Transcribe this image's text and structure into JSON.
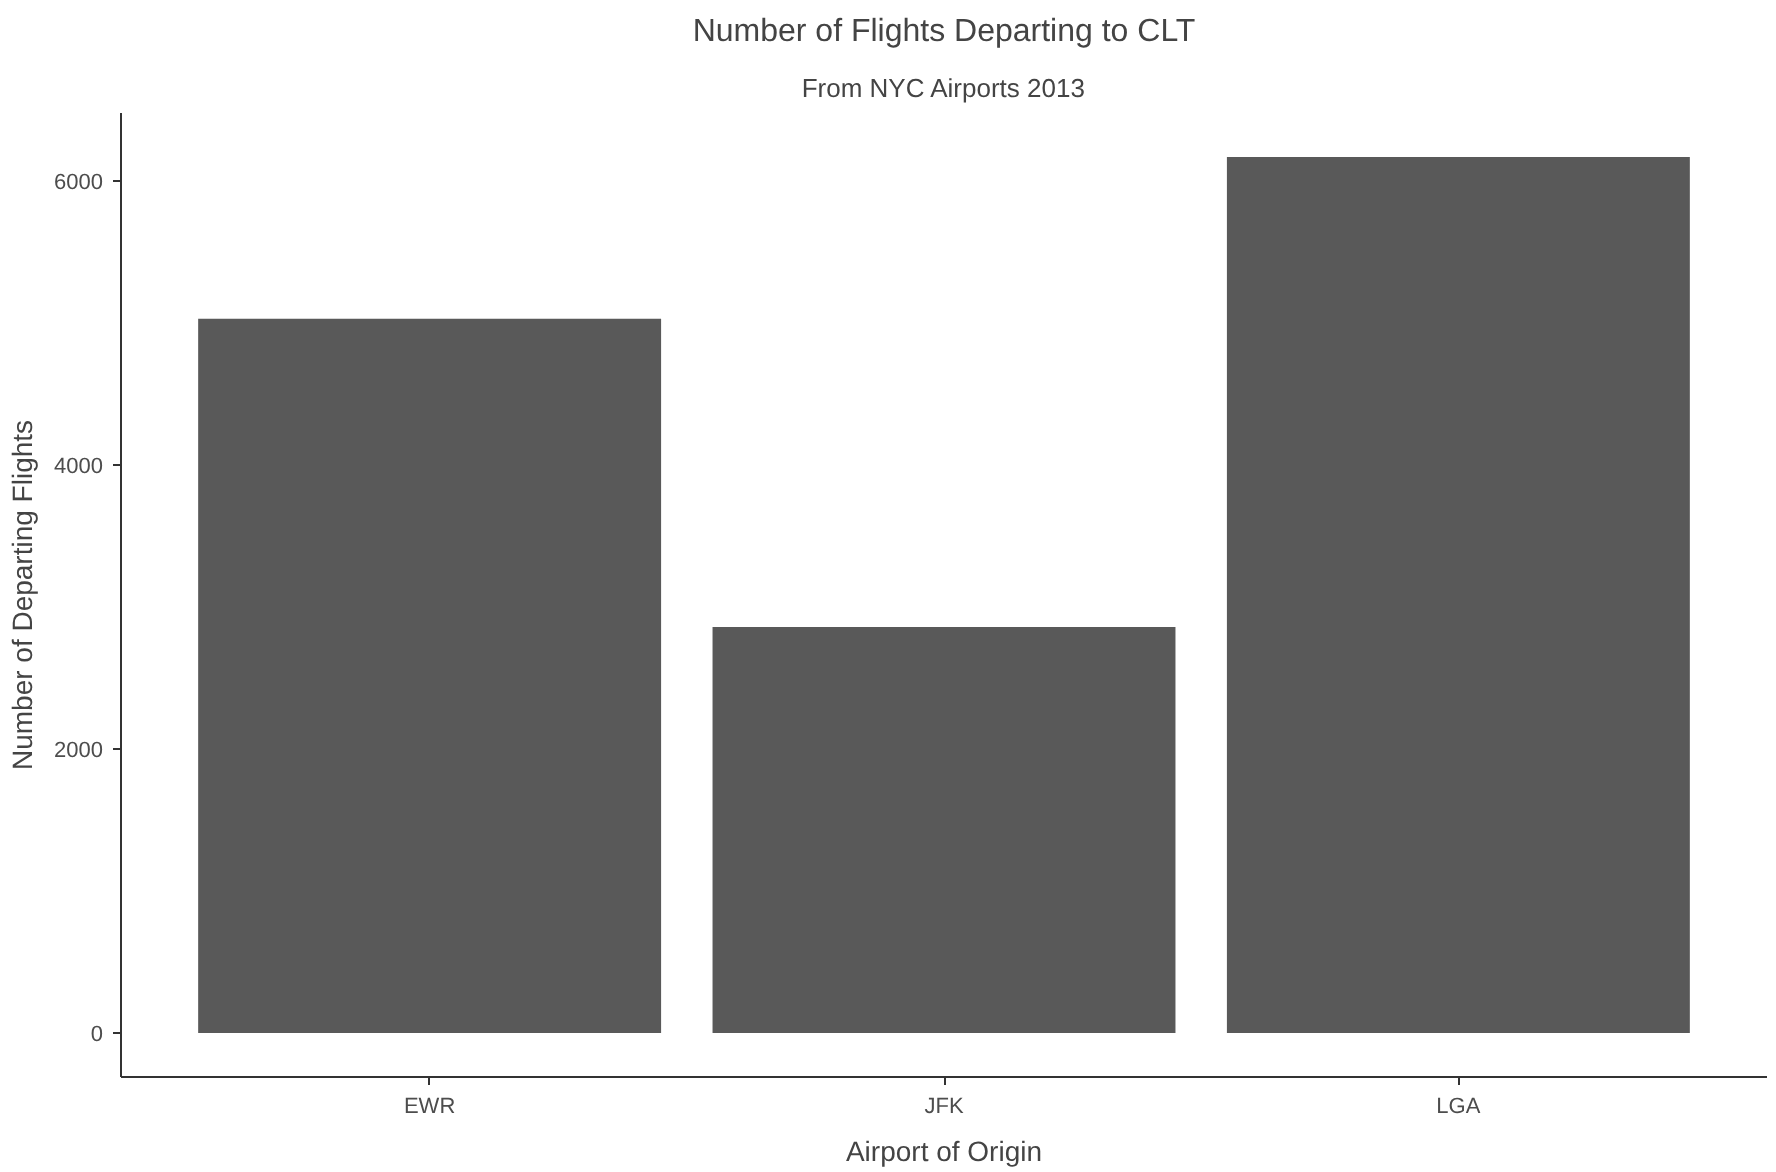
{
  "chart_data": {
    "type": "bar",
    "title": "Number of Flights Departing to CLT",
    "subtitle": "From NYC Airports 2013",
    "xlabel": "Airport of Origin",
    "ylabel": "Number of Departing Flights",
    "categories": [
      "EWR",
      "JFK",
      "LGA"
    ],
    "values": [
      5030,
      2860,
      6170
    ],
    "color": "#595959",
    "ylim": [
      -310,
      6480
    ],
    "yticks": [
      0,
      2000,
      4000,
      6000
    ],
    "grid": false
  }
}
